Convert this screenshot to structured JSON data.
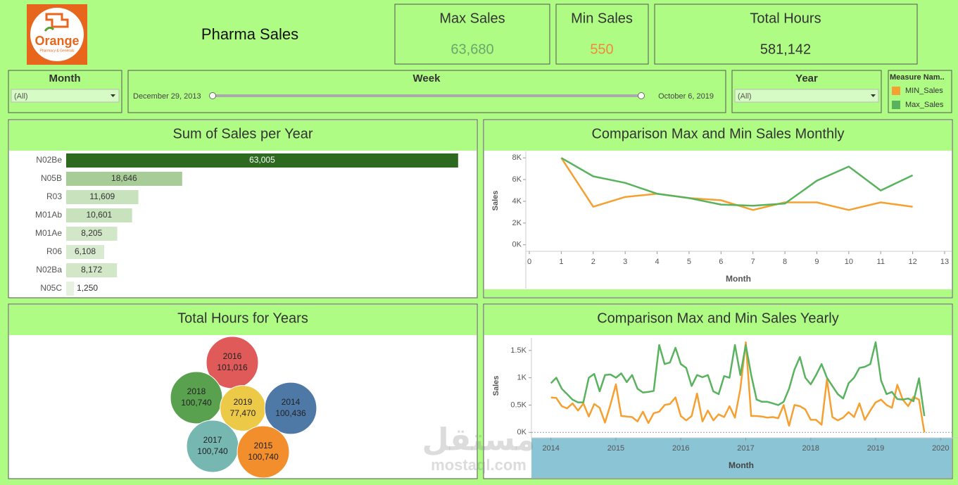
{
  "header": {
    "logo_text": "Orange",
    "logo_subtext": "Pharmacy & Generals",
    "title": "Pharma Sales"
  },
  "kpis": [
    {
      "label": "Max Sales",
      "value": "63,680",
      "color": "#6aa86a"
    },
    {
      "label": "Min Sales",
      "value": "550",
      "color": "#f08a3a"
    },
    {
      "label": "Total Hours",
      "value": "581,142",
      "color": "#333333"
    }
  ],
  "filters": {
    "month": {
      "label": "Month",
      "value": "(All)"
    },
    "week": {
      "label": "Week",
      "start": "December 29, 2013",
      "end": "October 6, 2019"
    },
    "year": {
      "label": "Year",
      "value": "(All)"
    }
  },
  "legend_title": "Measure Nam..",
  "watermark": {
    "arabic": "مستقل",
    "latin": "mostaql.com"
  },
  "chart_data": [
    {
      "type": "barh",
      "title": "Sum of Sales per Year",
      "categories": [
        "N02Be",
        "N05B",
        "R03",
        "M01Ab",
        "M01Ae",
        "R06",
        "N02Ba",
        "N05C"
      ],
      "values": [
        63005,
        18646,
        11609,
        10601,
        8205,
        6108,
        8172,
        1250
      ],
      "value_labels": [
        "63,005",
        "18,646",
        "11,609",
        "10,601",
        "8,205",
        "6,108",
        "8,172",
        "1,250"
      ],
      "colors": [
        "#2d6a1f",
        "#a8cc98",
        "#c9e2be",
        "#c9e2be",
        "#d2e7c8",
        "#d8eacf",
        "#d2e7c8",
        "#e6f1e0"
      ],
      "xlim": [
        0,
        65400
      ]
    },
    {
      "type": "line",
      "title": "Comparison Max and Min Sales Monthly",
      "x_label": "Month",
      "y_label": "Sales",
      "x": [
        1,
        2,
        3,
        4,
        5,
        6,
        7,
        8,
        9,
        10,
        11,
        12
      ],
      "series": [
        {
          "name": "MIN_Sales",
          "color": "#f5a030",
          "values": [
            8000,
            3500,
            4400,
            4700,
            4300,
            4100,
            3200,
            3900,
            3900,
            3200,
            3900,
            3500
          ]
        },
        {
          "name": "Max_Sales",
          "color": "#59b35e",
          "values": [
            8000,
            6300,
            5700,
            4700,
            4300,
            3700,
            3600,
            3800,
            5900,
            7200,
            5000,
            6400
          ]
        }
      ],
      "xlim": [
        0,
        13
      ],
      "xticks": [
        0,
        1,
        2,
        3,
        4,
        5,
        6,
        7,
        8,
        9,
        10,
        11,
        12,
        13
      ],
      "ylim": [
        -600,
        8600
      ],
      "yticks": [
        {
          "value": 0,
          "label": "0K"
        },
        {
          "value": 2000,
          "label": "2K"
        },
        {
          "value": 4000,
          "label": "4K"
        },
        {
          "value": 6000,
          "label": "6K"
        },
        {
          "value": 8000,
          "label": "8K"
        }
      ],
      "zero_line": false
    },
    {
      "type": "packed_bubble",
      "title": "Total Hours for Years",
      "categories": [
        "2016",
        "2018",
        "2019",
        "2014",
        "2017",
        "2015"
      ],
      "values": [
        101016,
        100740,
        77470,
        100436,
        100740,
        100740
      ],
      "value_labels": [
        "101,016",
        "100,740",
        "77,470",
        "100,436",
        "100,740",
        "100,740"
      ],
      "colors": [
        "#e05a5a",
        "#59a14f",
        "#edc948",
        "#4e79a7",
        "#76b7b2",
        "#f28e2b"
      ]
    },
    {
      "type": "line",
      "title": "Comparison Max and Min Sales Yearly",
      "x_label": "Month",
      "y_label": "Sales",
      "x": [
        2014,
        2014.083,
        2014.167,
        2014.25,
        2014.333,
        2014.417,
        2014.5,
        2014.583,
        2014.667,
        2014.75,
        2014.833,
        2014.917,
        2015,
        2015.083,
        2015.167,
        2015.25,
        2015.333,
        2015.417,
        2015.5,
        2015.583,
        2015.667,
        2015.75,
        2015.833,
        2015.917,
        2016,
        2016.083,
        2016.167,
        2016.25,
        2016.333,
        2016.417,
        2016.5,
        2016.583,
        2016.667,
        2016.75,
        2016.833,
        2016.917,
        2017,
        2017.083,
        2017.167,
        2017.25,
        2017.333,
        2017.417,
        2017.5,
        2017.583,
        2017.667,
        2017.75,
        2017.833,
        2017.917,
        2018,
        2018.083,
        2018.167,
        2018.25,
        2018.333,
        2018.417,
        2018.5,
        2018.583,
        2018.667,
        2018.75,
        2018.833,
        2018.917,
        2019,
        2019.083,
        2019.167,
        2019.25,
        2019.333,
        2019.417,
        2019.5,
        2019.583,
        2019.667,
        2019.75
      ],
      "series": [
        {
          "name": "MIN_Sales",
          "color": "#f5a030",
          "values": [
            640,
            630,
            480,
            440,
            530,
            400,
            530,
            290,
            520,
            450,
            180,
            510,
            880,
            300,
            290,
            280,
            200,
            380,
            170,
            350,
            380,
            500,
            520,
            640,
            300,
            220,
            300,
            710,
            200,
            400,
            220,
            330,
            280,
            480,
            270,
            800,
            1650,
            300,
            300,
            290,
            270,
            280,
            260,
            500,
            120,
            500,
            480,
            420,
            230,
            230,
            140,
            970,
            280,
            220,
            270,
            370,
            280,
            530,
            230,
            400,
            550,
            600,
            500,
            450,
            870,
            600,
            480,
            650,
            600,
            0
          ]
        },
        {
          "name": "Max_Sales",
          "color": "#59b35e",
          "values": [
            900,
            1000,
            800,
            700,
            600,
            550,
            550,
            1000,
            1070,
            750,
            1050,
            1060,
            1000,
            1080,
            920,
            1050,
            800,
            730,
            740,
            760,
            1600,
            1250,
            1280,
            1550,
            1250,
            1180,
            850,
            1050,
            1010,
            1050,
            750,
            700,
            1030,
            1000,
            1600,
            1050,
            1600,
            1050,
            600,
            560,
            560,
            530,
            500,
            560,
            800,
            1150,
            1380,
            1000,
            880,
            1050,
            1250,
            1000,
            850,
            700,
            620,
            900,
            1000,
            1180,
            1200,
            1250,
            1650,
            950,
            700,
            740,
            610,
            600,
            620,
            570,
            990,
            300
          ]
        }
      ],
      "xlim": [
        2013.7,
        2020.17
      ],
      "xticks": [
        2014,
        2015,
        2016,
        2017,
        2018,
        2019,
        2020
      ],
      "ylim": [
        -100,
        1730
      ],
      "yticks": [
        {
          "value": 0,
          "label": "0K"
        },
        {
          "value": 500,
          "label": "0.5K"
        },
        {
          "value": 1000,
          "label": "1K"
        },
        {
          "value": 1500,
          "label": "1.5K"
        }
      ],
      "zero_line": true
    }
  ]
}
